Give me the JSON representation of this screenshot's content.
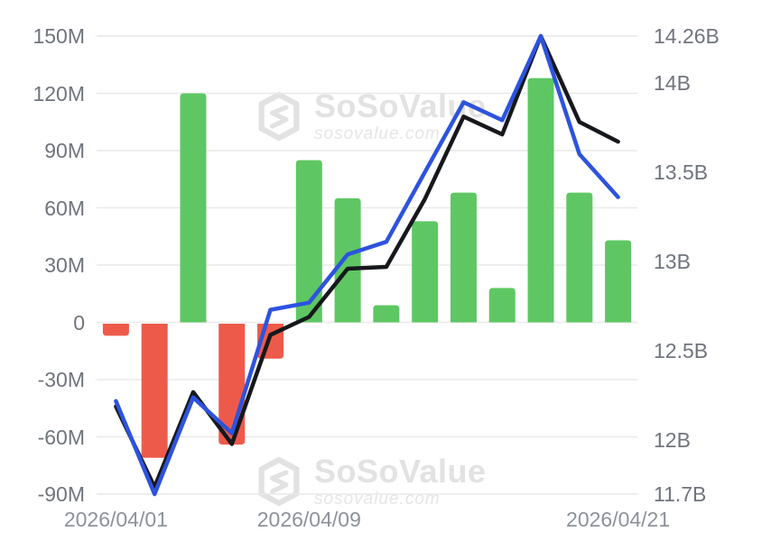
{
  "chart_data": {
    "type": "combo-bar-line",
    "title": "",
    "num_points": 14,
    "x_tick_labels": [
      {
        "label": "2026/04/01",
        "index": 0
      },
      {
        "label": "2026/04/09",
        "index": 5
      },
      {
        "label": "2026/04/21",
        "index": 13
      }
    ],
    "left_axis": {
      "unit": "M",
      "range": [
        -90,
        150
      ],
      "tick_labels": [
        "150M",
        "120M",
        "90M",
        "60M",
        "30M",
        "0",
        "-30M",
        "-60M",
        "-90M"
      ],
      "tick_values": [
        150,
        120,
        90,
        60,
        30,
        0,
        -30,
        -60,
        -90
      ]
    },
    "right_axis": {
      "unit": "B",
      "range": [
        11.7,
        14.26
      ],
      "tick_labels": [
        "14.26B",
        "14B",
        "13.5B",
        "13B",
        "12.5B",
        "12B",
        "11.7B"
      ],
      "tick_values": [
        14.26,
        14,
        13.5,
        13,
        12.5,
        12,
        11.7
      ]
    },
    "bars": {
      "name": "daily-net-flow-bars",
      "axis": "left",
      "values": [
        -7,
        -71,
        120,
        -64,
        -19,
        85,
        65,
        9,
        53,
        68,
        18,
        128,
        68,
        43
      ],
      "positive_color": "#5ec763",
      "negative_color": "#ee5a4a"
    },
    "series": [
      {
        "name": "black-line",
        "axis": "right",
        "color": "#16181c",
        "values": [
          12.19,
          11.74,
          12.27,
          11.98,
          12.59,
          12.69,
          12.96,
          12.97,
          13.35,
          13.81,
          13.71,
          14.26,
          13.78,
          13.67
        ]
      },
      {
        "name": "blue-line",
        "axis": "right",
        "color": "#2d53de",
        "values": [
          12.22,
          11.7,
          12.24,
          12.04,
          12.73,
          12.77,
          13.04,
          13.11,
          13.5,
          13.89,
          13.79,
          14.26,
          13.6,
          13.36
        ]
      }
    ],
    "grid": true,
    "legend": "none",
    "colors": {
      "grid": "#e9e9e9",
      "y_tick_text": "#70747c",
      "x_tick_text": "#8d929b",
      "background": "#ffffff"
    }
  },
  "watermark": {
    "title": "SoSoValue",
    "subtitle": "sosovalue.com"
  }
}
